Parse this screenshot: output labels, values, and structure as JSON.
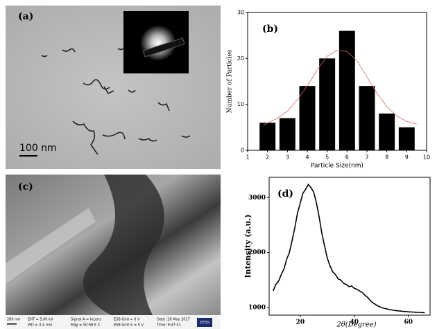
{
  "images": [
    {
      "label": "(a)",
      "scale_bar": "100 nm"
    },
    {
      "label": "(c)",
      "scale_bar": "200 nm",
      "info": [
        "EHT = 5.00 kV",
        "WD = 3.4 mm",
        "Signal A = InLens",
        "Mag = 50.68 K X",
        "ESB Grid = 0 V",
        "ESB Grid is = 0 V",
        "Date :26 May 2017",
        "Time :9:47:41"
      ],
      "logo": "ZEISS"
    }
  ],
  "chart_data": [
    {
      "type": "bar",
      "label": "(b)",
      "xlabel": "Particle Size(nm)",
      "ylabel": "Number of Particles",
      "x": [
        2,
        3,
        4,
        5,
        6,
        7,
        8,
        9
      ],
      "values": [
        6,
        7,
        14,
        20,
        26,
        14,
        8,
        5
      ],
      "color": "#000000",
      "xlim": [
        1,
        10
      ],
      "xticks": [
        1,
        2,
        3,
        4,
        5,
        6,
        7,
        8,
        9,
        10
      ],
      "ylim": [
        0,
        30
      ],
      "yticks": [
        0,
        10,
        20,
        30
      ],
      "fit": {
        "color": "#d06a6a",
        "x": [
          1.8,
          2.5,
          3,
          3.5,
          4,
          4.5,
          5,
          5.5,
          6,
          6.5,
          7,
          7.5,
          8,
          8.5,
          9,
          9.5
        ],
        "values": [
          5.5,
          7,
          8.5,
          11,
          14,
          17.5,
          20.5,
          21.8,
          21.5,
          19.5,
          16,
          12.5,
          9.5,
          7.5,
          6.3,
          5.7
        ]
      }
    },
    {
      "type": "line",
      "label": "(d)",
      "xlabel": "2θ(Degree)",
      "ylabel": "Intensity (a.u.)",
      "color": "#000000",
      "x": [
        10,
        11,
        12,
        13,
        14,
        15,
        16,
        17,
        18,
        19,
        20,
        21,
        22,
        23,
        24,
        25,
        26,
        27,
        28,
        29,
        30,
        31,
        32,
        33,
        34,
        35,
        36,
        37,
        38,
        39,
        40,
        41,
        42,
        43,
        44,
        45,
        46,
        47,
        48,
        49,
        50,
        51,
        52,
        53,
        54,
        55,
        56,
        57,
        58,
        59,
        60,
        61,
        62,
        63,
        64,
        65,
        66
      ],
      "values": [
        1300,
        1420,
        1480,
        1600,
        1700,
        1880,
        2000,
        2220,
        2450,
        2720,
        2900,
        3080,
        3150,
        3240,
        3180,
        3100,
        2900,
        2650,
        2350,
        2120,
        1900,
        1760,
        1650,
        1600,
        1520,
        1500,
        1440,
        1420,
        1380,
        1390,
        1350,
        1330,
        1300,
        1270,
        1220,
        1180,
        1120,
        1080,
        1050,
        1020,
        1000,
        985,
        975,
        960,
        955,
        945,
        940,
        935,
        930,
        925,
        920,
        918,
        915,
        912,
        910,
        908,
        905
      ],
      "xlim": [
        8.5,
        68
      ],
      "xticks": [
        20,
        40,
        60
      ],
      "ylim": [
        860,
        3370
      ],
      "yticks": [
        1000,
        2000,
        3000
      ]
    }
  ]
}
